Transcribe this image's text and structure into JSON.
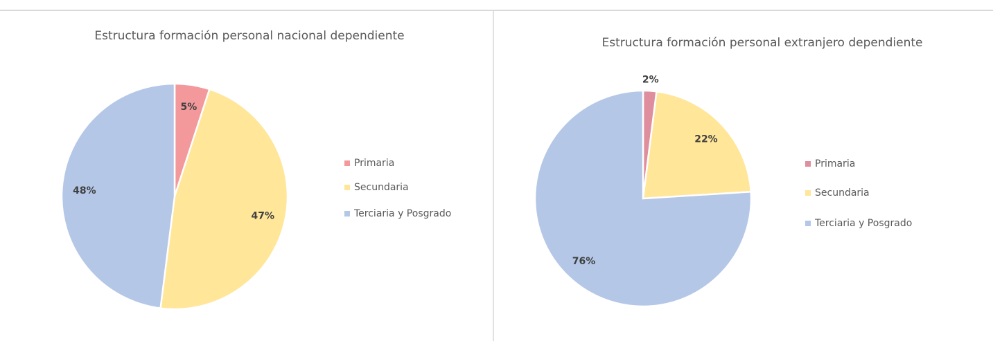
{
  "chart_data": [
    {
      "type": "pie",
      "title": "Estructura formación personal nacional dependiente",
      "categories": [
        "Primaria",
        "Secundaria",
        "Terciaria y Posgrado"
      ],
      "values": [
        5,
        47,
        48
      ],
      "value_labels": [
        "5%",
        "47%",
        "48%"
      ],
      "colors": [
        "#f4999b",
        "#ffe699",
        "#b4c7e7"
      ],
      "legend": "right"
    },
    {
      "type": "pie",
      "title": "Estructura formación personal extranjero dependiente",
      "categories": [
        "Primaria",
        "Secundaria",
        "Terciaria y Posgrado"
      ],
      "values": [
        2,
        22,
        76
      ],
      "value_labels": [
        "2%",
        "22%",
        "76%"
      ],
      "colors": [
        "#df8e9d",
        "#ffe699",
        "#b4c7e7"
      ],
      "legend": "right"
    }
  ]
}
